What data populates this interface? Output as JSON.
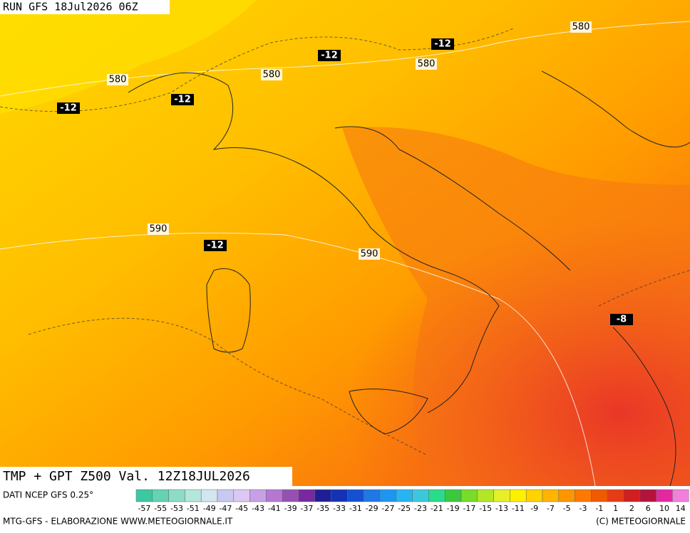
{
  "header": {
    "run": "RUN GFS 18Jul2026 06Z"
  },
  "map": {
    "geopotential_labels": [
      580,
      580,
      580,
      580,
      590,
      590
    ],
    "temperature_labels": [
      "-12",
      "-12",
      "-12",
      "-12",
      "-12",
      "-8"
    ]
  },
  "title": "TMP + GPT Z500 Val. 12Z18JUL2026",
  "source": "DATI NCEP GFS 0.25°",
  "legend": {
    "labels": [
      -57,
      -55,
      -53,
      -51,
      -49,
      -47,
      -45,
      -43,
      -41,
      -39,
      -37,
      -35,
      -33,
      -31,
      -29,
      -27,
      -25,
      -23,
      -21,
      -19,
      -17,
      -15,
      -13,
      -11,
      -9,
      -7,
      -5,
      -3,
      -1,
      1,
      2,
      6,
      10,
      14
    ],
    "colors": [
      "#3cc8a0",
      "#64d2b4",
      "#8cdcc8",
      "#b4e6dc",
      "#d2e6f0",
      "#c8c8f0",
      "#dcc8f0",
      "#c8a0e6",
      "#b478d2",
      "#9650b4",
      "#7828a0",
      "#1e1e96",
      "#1432b4",
      "#1450d2",
      "#1e78e6",
      "#1e96f0",
      "#28b4f0",
      "#3cc8dc",
      "#28dc8c",
      "#3cc83c",
      "#78dc28",
      "#b4e628",
      "#e6f028",
      "#fff000",
      "#ffd200",
      "#ffb400",
      "#ff9600",
      "#ff7800",
      "#f05a00",
      "#e63c14",
      "#d21e1e",
      "#b4143c",
      "#e628a0",
      "#f080dc"
    ]
  },
  "footer": {
    "left": "MTG-GFS - ELABORAZIONE WWW.METEOGIORNALE.IT",
    "right": "(C) METEOGIORNALE"
  }
}
